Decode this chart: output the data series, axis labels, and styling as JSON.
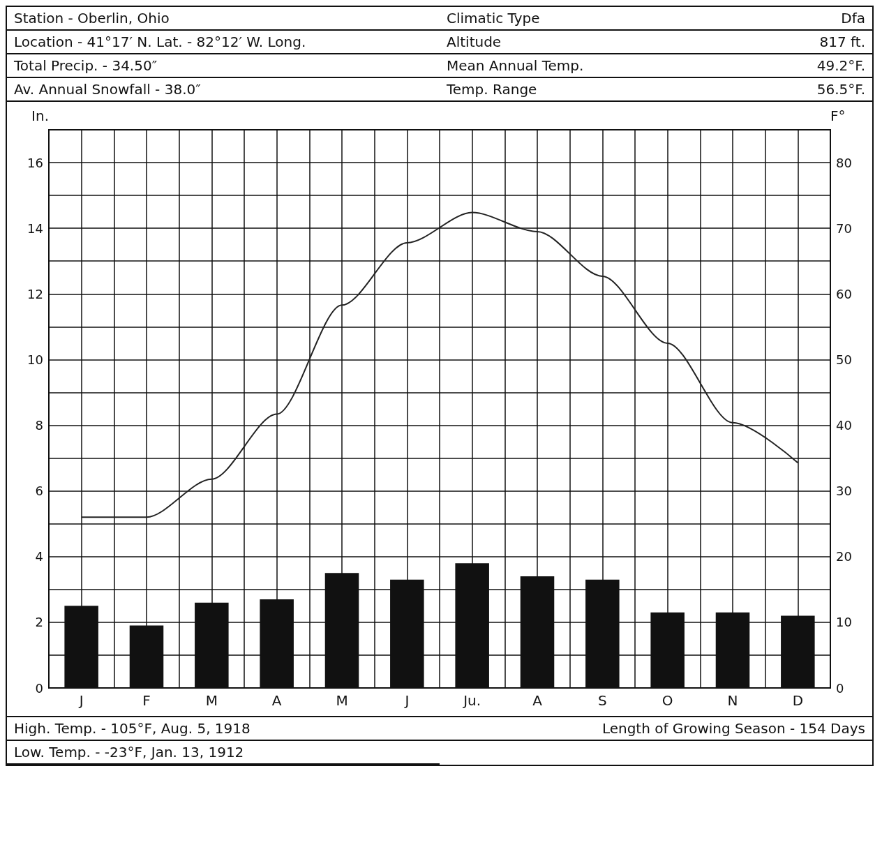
{
  "chart_data": {
    "type": "bar",
    "ylabel": "In.",
    "y2label": "F°",
    "categories": [
      "J",
      "F",
      "M",
      "A",
      "M",
      "J",
      "Ju.",
      "A",
      "S",
      "O",
      "N",
      "D"
    ],
    "series": [
      {
        "color": "#111111",
        "values": [
          2.5,
          1.9,
          2.6,
          2.7,
          3.5,
          3.3,
          3.8,
          3.4,
          3.3,
          2.3,
          2.3,
          2.2
        ]
      },
      {
        "type": "line",
        "axis": "y2",
        "color": "#222222",
        "values": [
          26,
          26,
          31.8,
          41.7,
          58.3,
          67.8,
          72.4,
          69.5,
          62.7,
          52.5,
          40.4,
          34.3
        ]
      }
    ],
    "ylim": [
      0,
      17
    ],
    "yticks": [
      0,
      {
        "value": 1,
        "label": null
      },
      2,
      {
        "value": 3,
        "label": null
      },
      4,
      {
        "value": 5,
        "label": null
      },
      6,
      {
        "value": 7,
        "label": null
      },
      8,
      {
        "value": 9,
        "label": null
      },
      10,
      {
        "value": 11,
        "label": null
      },
      12,
      {
        "value": 13,
        "label": null
      },
      14,
      {
        "value": 15,
        "label": null
      },
      16
    ],
    "y2lim": [
      0,
      85
    ],
    "y2ticks": [
      0,
      10,
      20,
      30,
      40,
      50,
      60,
      70,
      80
    ],
    "grid": true,
    "marker": "none",
    "line_style": "solid",
    "annotations": [
      "Station - Oberlin, Ohio",
      "Climatic Type",
      "Dfa",
      "Location - 41°17′ N. Lat. - 82°12′ W. Long.",
      "Altitude",
      "817 ft.",
      "Total Precip. - 34.50″",
      "Mean Annual Temp.",
      "49.2°F.",
      "Av. Annual Snowfall - 38.0″",
      "Temp. Range",
      "56.5°F.",
      "High. Temp. - 105°F, Aug. 5, 1918",
      "Length of Growing Season - 154 Days",
      "Low. Temp. - -23°F, Jan. 13, 1912"
    ]
  }
}
